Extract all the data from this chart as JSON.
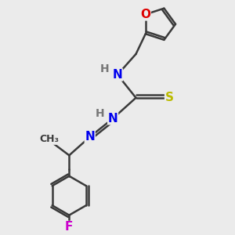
{
  "bg_color": "#ebebeb",
  "bond_color": "#3a3a3a",
  "bond_width": 1.8,
  "atom_colors": {
    "N": "#0000ee",
    "O": "#dd0000",
    "S": "#bbbb00",
    "F": "#cc00cc",
    "H": "#777777",
    "C": "#3a3a3a"
  },
  "font_size": 10,
  "fig_size": [
    3.0,
    3.0
  ],
  "dpi": 100
}
